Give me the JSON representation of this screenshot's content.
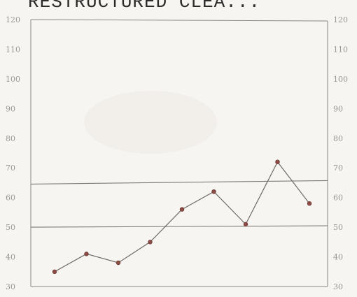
{
  "chart_data": {
    "type": "line",
    "title": "RESTRUCTURED CLEA...",
    "xlabel": "",
    "ylabel": "",
    "x": [
      1,
      2,
      3,
      4,
      5,
      6,
      7,
      8,
      9
    ],
    "ylim": [
      30,
      120
    ],
    "y_ticks": [
      30,
      40,
      50,
      60,
      70,
      80,
      90,
      100,
      110,
      120
    ],
    "left_axis_ticks": [
      "30",
      "40",
      "50",
      "60",
      "70",
      "80",
      "90",
      "100",
      "110",
      "120"
    ],
    "right_axis_ticks": [
      "30",
      "40",
      "50",
      "60",
      "70",
      "80",
      "90",
      "100",
      "110",
      "120"
    ],
    "series": [
      {
        "values": [
          35,
          41,
          38,
          45,
          56,
          62,
          51,
          72,
          58
        ]
      }
    ],
    "reference_lines": [
      50,
      65
    ],
    "grid": false,
    "legend": "none"
  }
}
